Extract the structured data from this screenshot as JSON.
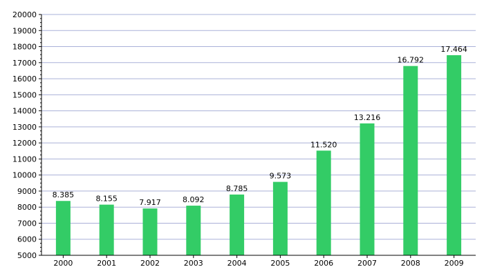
{
  "chart_data": {
    "type": "bar",
    "categories": [
      "2000",
      "2001",
      "2002",
      "2003",
      "2004",
      "2005",
      "2006",
      "2007",
      "2008",
      "2009"
    ],
    "values": [
      8385,
      8155,
      7917,
      8092,
      8785,
      9573,
      11520,
      13216,
      16792,
      17464
    ],
    "value_labels": [
      "8.385",
      "8.155",
      "7.917",
      "8.092",
      "8.785",
      "9.573",
      "11.520",
      "13.216",
      "16.792",
      "17.464"
    ],
    "ylim": [
      5000,
      20000
    ],
    "yticks": [
      5000,
      6000,
      7000,
      8000,
      9000,
      10000,
      11000,
      12000,
      13000,
      14000,
      15000,
      16000,
      17000,
      18000,
      19000,
      20000
    ],
    "grid": true,
    "title": "",
    "xlabel": "",
    "ylabel": "",
    "colors": {
      "bar": "#33cc66",
      "grid": "#aab0d8",
      "axis": "#000000"
    }
  }
}
